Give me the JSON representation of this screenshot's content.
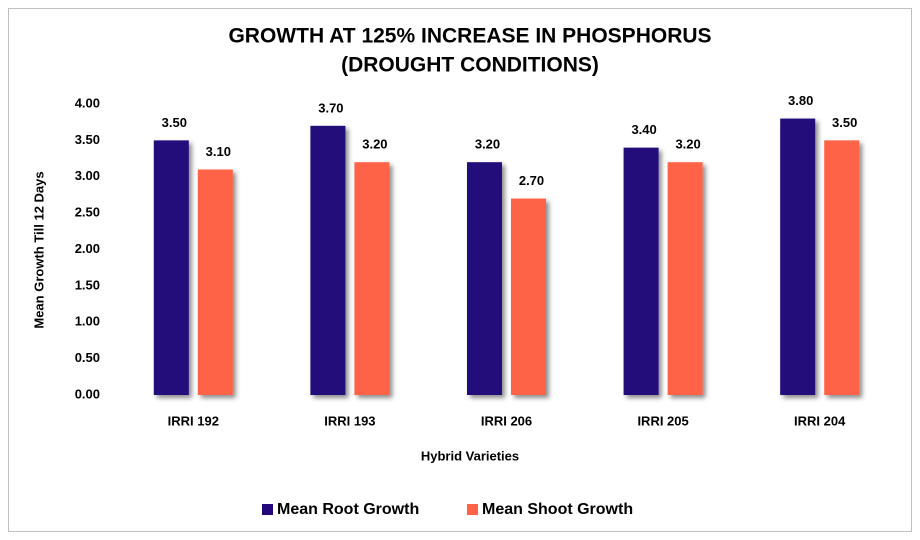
{
  "chart_data": {
    "type": "bar",
    "title": [
      "GROWTH AT 125% INCREASE IN PHOSPHORUS",
      "(DROUGHT CONDITIONS)"
    ],
    "x_label": "Hybrid Varieties",
    "y_label": "Mean Growth Till 12 Days",
    "categories": [
      "IRRI 192",
      "IRRI 193",
      "IRRI 206",
      "IRRI 205",
      "IRRI 204"
    ],
    "series": [
      {
        "name": "Mean Root Growth",
        "color": "#22087a",
        "values": [
          3.5,
          3.7,
          3.2,
          3.4,
          3.8
        ],
        "value_labels": [
          "3.50",
          "3.70",
          "3.20",
          "3.40",
          "3.80"
        ]
      },
      {
        "name": "Mean Shoot Growth",
        "color": "#ff6347",
        "values": [
          3.1,
          3.2,
          2.7,
          3.2,
          3.5
        ],
        "value_labels": [
          "3.10",
          "3.20",
          "2.70",
          "3.20",
          "3.50"
        ]
      }
    ],
    "ylim": [
      0,
      4
    ],
    "yticks": [
      {
        "value": 0,
        "label": "0.00"
      },
      {
        "value": 0.5,
        "label": "0.50"
      },
      {
        "value": 1,
        "label": "1.00"
      },
      {
        "value": 1.5,
        "label": "1.50"
      },
      {
        "value": 2,
        "label": "2.00"
      },
      {
        "value": 2.5,
        "label": "2.50"
      },
      {
        "value": 3,
        "label": "3.00"
      },
      {
        "value": 3.5,
        "label": "3.50"
      },
      {
        "value": 4,
        "label": "4.00"
      }
    ],
    "grid": false,
    "legend": "bottom"
  }
}
